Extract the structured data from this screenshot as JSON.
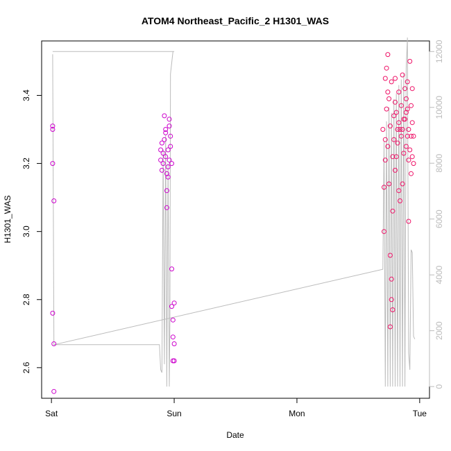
{
  "chart_data": {
    "type": "scatter",
    "title": "ATOM4 Northeast_Pacific_2 H1301_WAS",
    "xlabel": "Date",
    "ylabel": "H1301_WAS",
    "x_unit": "days since Sat 00:00",
    "x_ticks": [
      {
        "value": 0,
        "label": "Sat"
      },
      {
        "value": 1,
        "label": "Sun"
      },
      {
        "value": 2,
        "label": "Mon"
      },
      {
        "value": 3,
        "label": "Tue"
      }
    ],
    "xlim": [
      -0.08,
      3.08
    ],
    "ylim": [
      2.51,
      3.56
    ],
    "y_ticks": [
      2.6,
      2.8,
      3.0,
      3.2,
      3.4
    ],
    "y2_ticks": [
      0,
      2000,
      4000,
      6000,
      8000,
      10000,
      12000
    ],
    "y2lim": [
      -420,
      12380
    ],
    "grid": false,
    "legend": "none",
    "colors": {
      "scatter_low": "#cc00cc",
      "scatter_high": "#ee1166",
      "altitude_line": "#bbbbbb",
      "axes": "#000000",
      "right_axis": "#bbbbbb"
    },
    "series": [
      {
        "kind": "points",
        "values": [
          [
            0.01,
            3.31
          ],
          [
            0.01,
            3.3
          ],
          [
            0.01,
            3.2
          ],
          [
            0.02,
            3.09
          ],
          [
            0.01,
            2.76
          ],
          [
            0.02,
            2.67
          ],
          [
            0.02,
            2.53
          ],
          [
            0.89,
            3.21
          ],
          [
            0.89,
            3.24
          ],
          [
            0.9,
            3.26
          ],
          [
            0.9,
            3.18
          ],
          [
            0.91,
            3.2
          ],
          [
            0.91,
            3.23
          ],
          [
            0.92,
            3.27
          ],
          [
            0.92,
            3.34
          ],
          [
            0.93,
            3.29
          ],
          [
            0.93,
            3.22
          ],
          [
            0.94,
            3.17
          ],
          [
            0.94,
            3.12
          ],
          [
            0.94,
            3.07
          ],
          [
            0.95,
            3.24
          ],
          [
            0.95,
            3.19
          ],
          [
            0.96,
            3.31
          ],
          [
            0.96,
            3.33
          ],
          [
            0.97,
            3.28
          ],
          [
            0.97,
            3.25
          ],
          [
            0.98,
            3.2
          ],
          [
            0.93,
            3.3
          ],
          [
            0.95,
            3.16
          ],
          [
            0.96,
            3.21
          ],
          [
            0.98,
            2.89
          ],
          [
            0.98,
            2.78
          ],
          [
            0.99,
            2.74
          ],
          [
            0.99,
            2.69
          ],
          [
            0.99,
            2.62
          ],
          [
            1.0,
            2.79
          ],
          [
            1.0,
            2.67
          ],
          [
            1.0,
            2.62
          ],
          [
            2.7,
            3.3
          ],
          [
            2.71,
            3.13
          ],
          [
            2.71,
            3.0
          ],
          [
            2.72,
            3.21
          ],
          [
            2.72,
            3.45
          ],
          [
            2.73,
            3.48
          ],
          [
            2.74,
            3.25
          ],
          [
            2.74,
            3.52
          ],
          [
            2.75,
            3.39
          ],
          [
            2.75,
            3.14
          ],
          [
            2.76,
            2.93
          ],
          [
            2.76,
            2.72
          ],
          [
            2.77,
            2.86
          ],
          [
            2.77,
            2.8
          ],
          [
            2.78,
            2.77
          ],
          [
            2.78,
            3.06
          ],
          [
            2.79,
            3.27
          ],
          [
            2.8,
            3.45
          ],
          [
            2.8,
            3.18
          ],
          [
            2.81,
            3.35
          ],
          [
            2.81,
            3.22
          ],
          [
            2.82,
            3.3
          ],
          [
            2.83,
            3.41
          ],
          [
            2.83,
            3.12
          ],
          [
            2.84,
            3.3
          ],
          [
            2.84,
            3.09
          ],
          [
            2.85,
            3.37
          ],
          [
            2.86,
            3.46
          ],
          [
            2.86,
            3.14
          ],
          [
            2.87,
            3.23
          ],
          [
            2.87,
            3.33
          ],
          [
            2.88,
            3.42
          ],
          [
            2.89,
            3.25
          ],
          [
            2.89,
            3.35
          ],
          [
            2.9,
            3.28
          ],
          [
            2.9,
            3.44
          ],
          [
            2.91,
            3.03
          ],
          [
            2.91,
            3.21
          ],
          [
            2.92,
            3.5
          ],
          [
            2.93,
            3.37
          ],
          [
            2.93,
            3.17
          ],
          [
            2.94,
            3.42
          ],
          [
            2.94,
            3.22
          ],
          [
            2.95,
            3.28
          ],
          [
            2.95,
            3.2
          ],
          [
            2.72,
            3.27
          ],
          [
            2.73,
            3.36
          ],
          [
            2.76,
            3.31
          ],
          [
            2.78,
            3.22
          ],
          [
            2.79,
            3.34
          ],
          [
            2.82,
            3.26
          ],
          [
            2.85,
            3.28
          ],
          [
            2.88,
            3.33
          ],
          [
            2.9,
            3.36
          ],
          [
            2.92,
            3.24
          ],
          [
            2.94,
            3.32
          ],
          [
            2.74,
            3.41
          ],
          [
            2.77,
            3.44
          ],
          [
            2.8,
            3.38
          ],
          [
            2.83,
            3.32
          ],
          [
            2.86,
            3.3
          ],
          [
            2.89,
            3.39
          ],
          [
            2.91,
            3.3
          ],
          [
            2.93,
            3.28
          ]
        ]
      },
      {
        "kind": "altitude_line",
        "axis": "right",
        "values": [
          [
            0.01,
            12000
          ],
          [
            0.01,
            12000
          ],
          [
            1.0,
            12000
          ],
          [
            0.99,
            12000
          ],
          [
            0.98,
            11600
          ],
          [
            0.97,
            11200
          ],
          [
            0.965,
            2400
          ],
          [
            0.96,
            0
          ],
          [
            0.95,
            8000
          ],
          [
            0.94,
            0
          ],
          [
            0.93,
            9000
          ],
          [
            0.92,
            800
          ],
          [
            0.91,
            8500
          ],
          [
            0.9,
            500
          ],
          [
            0.89,
            600
          ],
          [
            0.88,
            1500
          ],
          [
            0.02,
            1500
          ],
          [
            0.02,
            1600
          ],
          [
            0.01,
            11900
          ],
          [
            0.02,
            1500
          ],
          [
            2.7,
            4200
          ],
          [
            2.71,
            8800
          ],
          [
            2.72,
            0
          ],
          [
            2.73,
            9500
          ],
          [
            2.74,
            0
          ],
          [
            2.75,
            10000
          ],
          [
            2.76,
            0
          ],
          [
            2.77,
            9800
          ],
          [
            2.78,
            0
          ],
          [
            2.79,
            10300
          ],
          [
            2.8,
            0
          ],
          [
            2.81,
            10500
          ],
          [
            2.82,
            0
          ],
          [
            2.83,
            10800
          ],
          [
            2.84,
            0
          ],
          [
            2.85,
            11000
          ],
          [
            2.86,
            0
          ],
          [
            2.87,
            11200
          ],
          [
            2.88,
            0
          ],
          [
            2.89,
            11400
          ],
          [
            2.9,
            12500
          ],
          [
            2.91,
            1200
          ],
          [
            2.92,
            600
          ],
          [
            2.93,
            4900
          ],
          [
            2.94,
            4800
          ],
          [
            2.95,
            1800
          ],
          [
            2.96,
            1700
          ]
        ]
      }
    ]
  }
}
